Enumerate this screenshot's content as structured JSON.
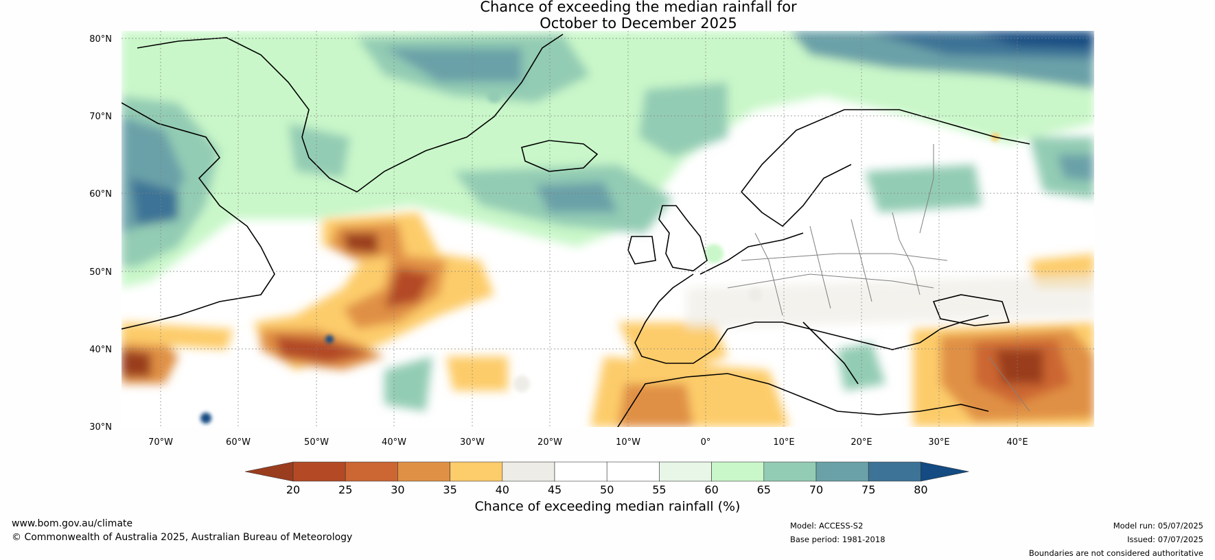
{
  "title": {
    "line1": "Chance of exceeding the median rainfall for",
    "line2": "October to December 2025"
  },
  "map": {
    "lat_labels": [
      "80°N",
      "70°N",
      "60°N",
      "50°N",
      "40°N",
      "30°N"
    ],
    "lon_labels": [
      "70°W",
      "60°W",
      "50°W",
      "40°W",
      "30°W",
      "20°W",
      "10°W",
      "0°",
      "10°E",
      "20°E",
      "30°E",
      "40°E"
    ],
    "ocean_color": "#ffffff",
    "coastline_color": "#000000",
    "border_color": "#7f7f7f"
  },
  "colorbar": {
    "ticks": [
      "20",
      "25",
      "30",
      "35",
      "40",
      "45",
      "50",
      "55",
      "60",
      "65",
      "70",
      "75",
      "80"
    ],
    "colors": [
      "#9a3d1f",
      "#b34a25",
      "#cc6633",
      "#e09045",
      "#fdcc6b",
      "#eeece6",
      "#ffffff",
      "#ffffff",
      "#e8f6e8",
      "#c9f7c9",
      "#93ccb4",
      "#6aa1a8",
      "#3d7396",
      "#134b82"
    ],
    "title": "Chance of exceeding median rainfall (%)"
  },
  "footer": {
    "website": "www.bom.gov.au/climate",
    "copyright": "© Commonwealth of Australia 2025, Australian Bureau of Meteorology",
    "model": "Model: ACCESS-S2",
    "base_period": "Base period: 1981-2018",
    "model_run": "Model run: 05/07/2025",
    "issued": "Issued: 07/07/2025",
    "disclaimer": "Boundaries are not considered authoritative"
  }
}
